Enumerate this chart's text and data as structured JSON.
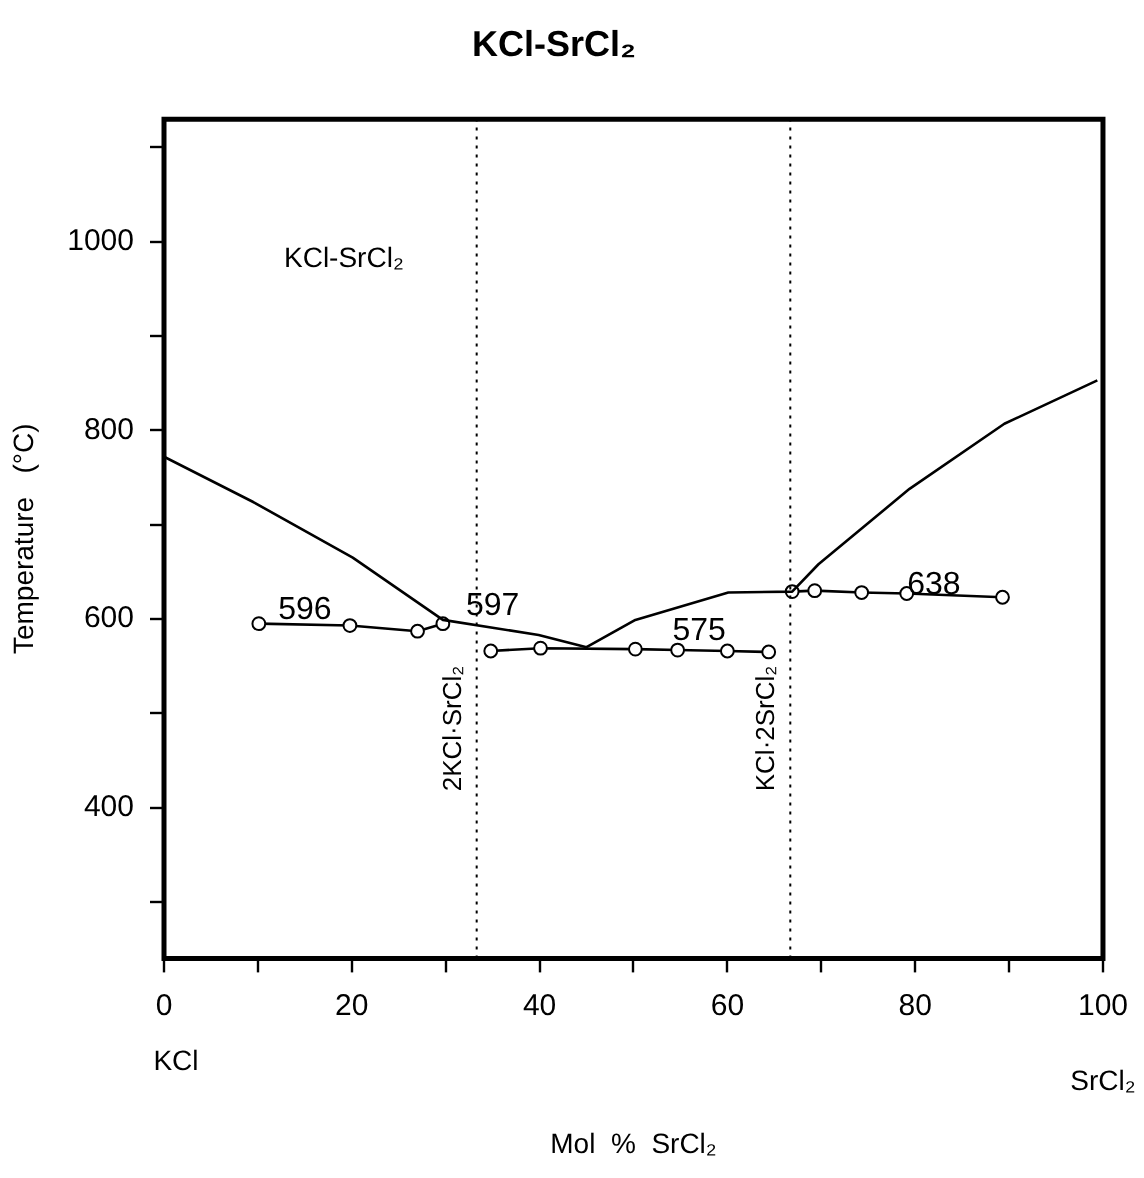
{
  "chart_data": {
    "type": "line",
    "title": "KCl-SrCl₂",
    "xlabel": "Mol  %  SrCl₂",
    "ylabel": "Temperature   (°C)",
    "xlim": [
      0,
      100
    ],
    "ylim": [
      240,
      1130
    ],
    "xticks": [
      0,
      {
        "value": 10,
        "label": null
      },
      20,
      {
        "value": 30,
        "label": null
      },
      40,
      {
        "value": 50,
        "label": null
      },
      60,
      {
        "value": 70,
        "label": null
      },
      80,
      {
        "value": 90,
        "label": null
      },
      100
    ],
    "yticks": [
      {
        "value": 300,
        "label": null
      },
      400,
      {
        "value": 500,
        "label": null
      },
      600,
      {
        "value": 700,
        "label": null
      },
      800,
      {
        "value": 900,
        "label": null
      },
      1000,
      {
        "value": 1100,
        "label": null
      }
    ],
    "grid": false,
    "legend": false,
    "series": [
      {
        "color": "#000000",
        "marker": "none",
        "x": [
          0,
          9.5,
          20.1,
          29.7,
          39.9,
          45,
          50.2,
          60.1,
          66.9,
          69.7,
          79.4,
          89.5,
          99.4
        ],
        "values": [
          772,
          724,
          665,
          599,
          583,
          570,
          599,
          628,
          629,
          658,
          738,
          807,
          853
        ]
      },
      {
        "color": "#000000",
        "marker": "circle",
        "x": [
          10.1,
          19.8,
          27,
          29.7
        ],
        "values": [
          595,
          593,
          587,
          595
        ]
      },
      {
        "color": "#000000",
        "marker": "circle",
        "x": [
          34.8,
          40.1,
          50.2,
          54.7,
          60,
          64.4
        ],
        "values": [
          566,
          569,
          568,
          567,
          566,
          565
        ]
      },
      {
        "color": "#000000",
        "marker": "circle",
        "x": [
          66.9,
          69.3,
          74.3,
          79.1,
          89.3
        ],
        "values": [
          629,
          630,
          628,
          627,
          623
        ]
      }
    ],
    "ref_lines": [
      {
        "axis": "x",
        "value": 33.3,
        "label": "2KCl·SrCl₂",
        "line_style": "dotted"
      },
      {
        "axis": "x",
        "value": 66.7,
        "label": "KCl·2SrCl₂",
        "line_style": "dotted"
      }
    ],
    "annotations": [
      "KCl-SrCl₂",
      "KCl",
      "SrCl₂",
      "596",
      "597",
      "575",
      "638"
    ]
  }
}
